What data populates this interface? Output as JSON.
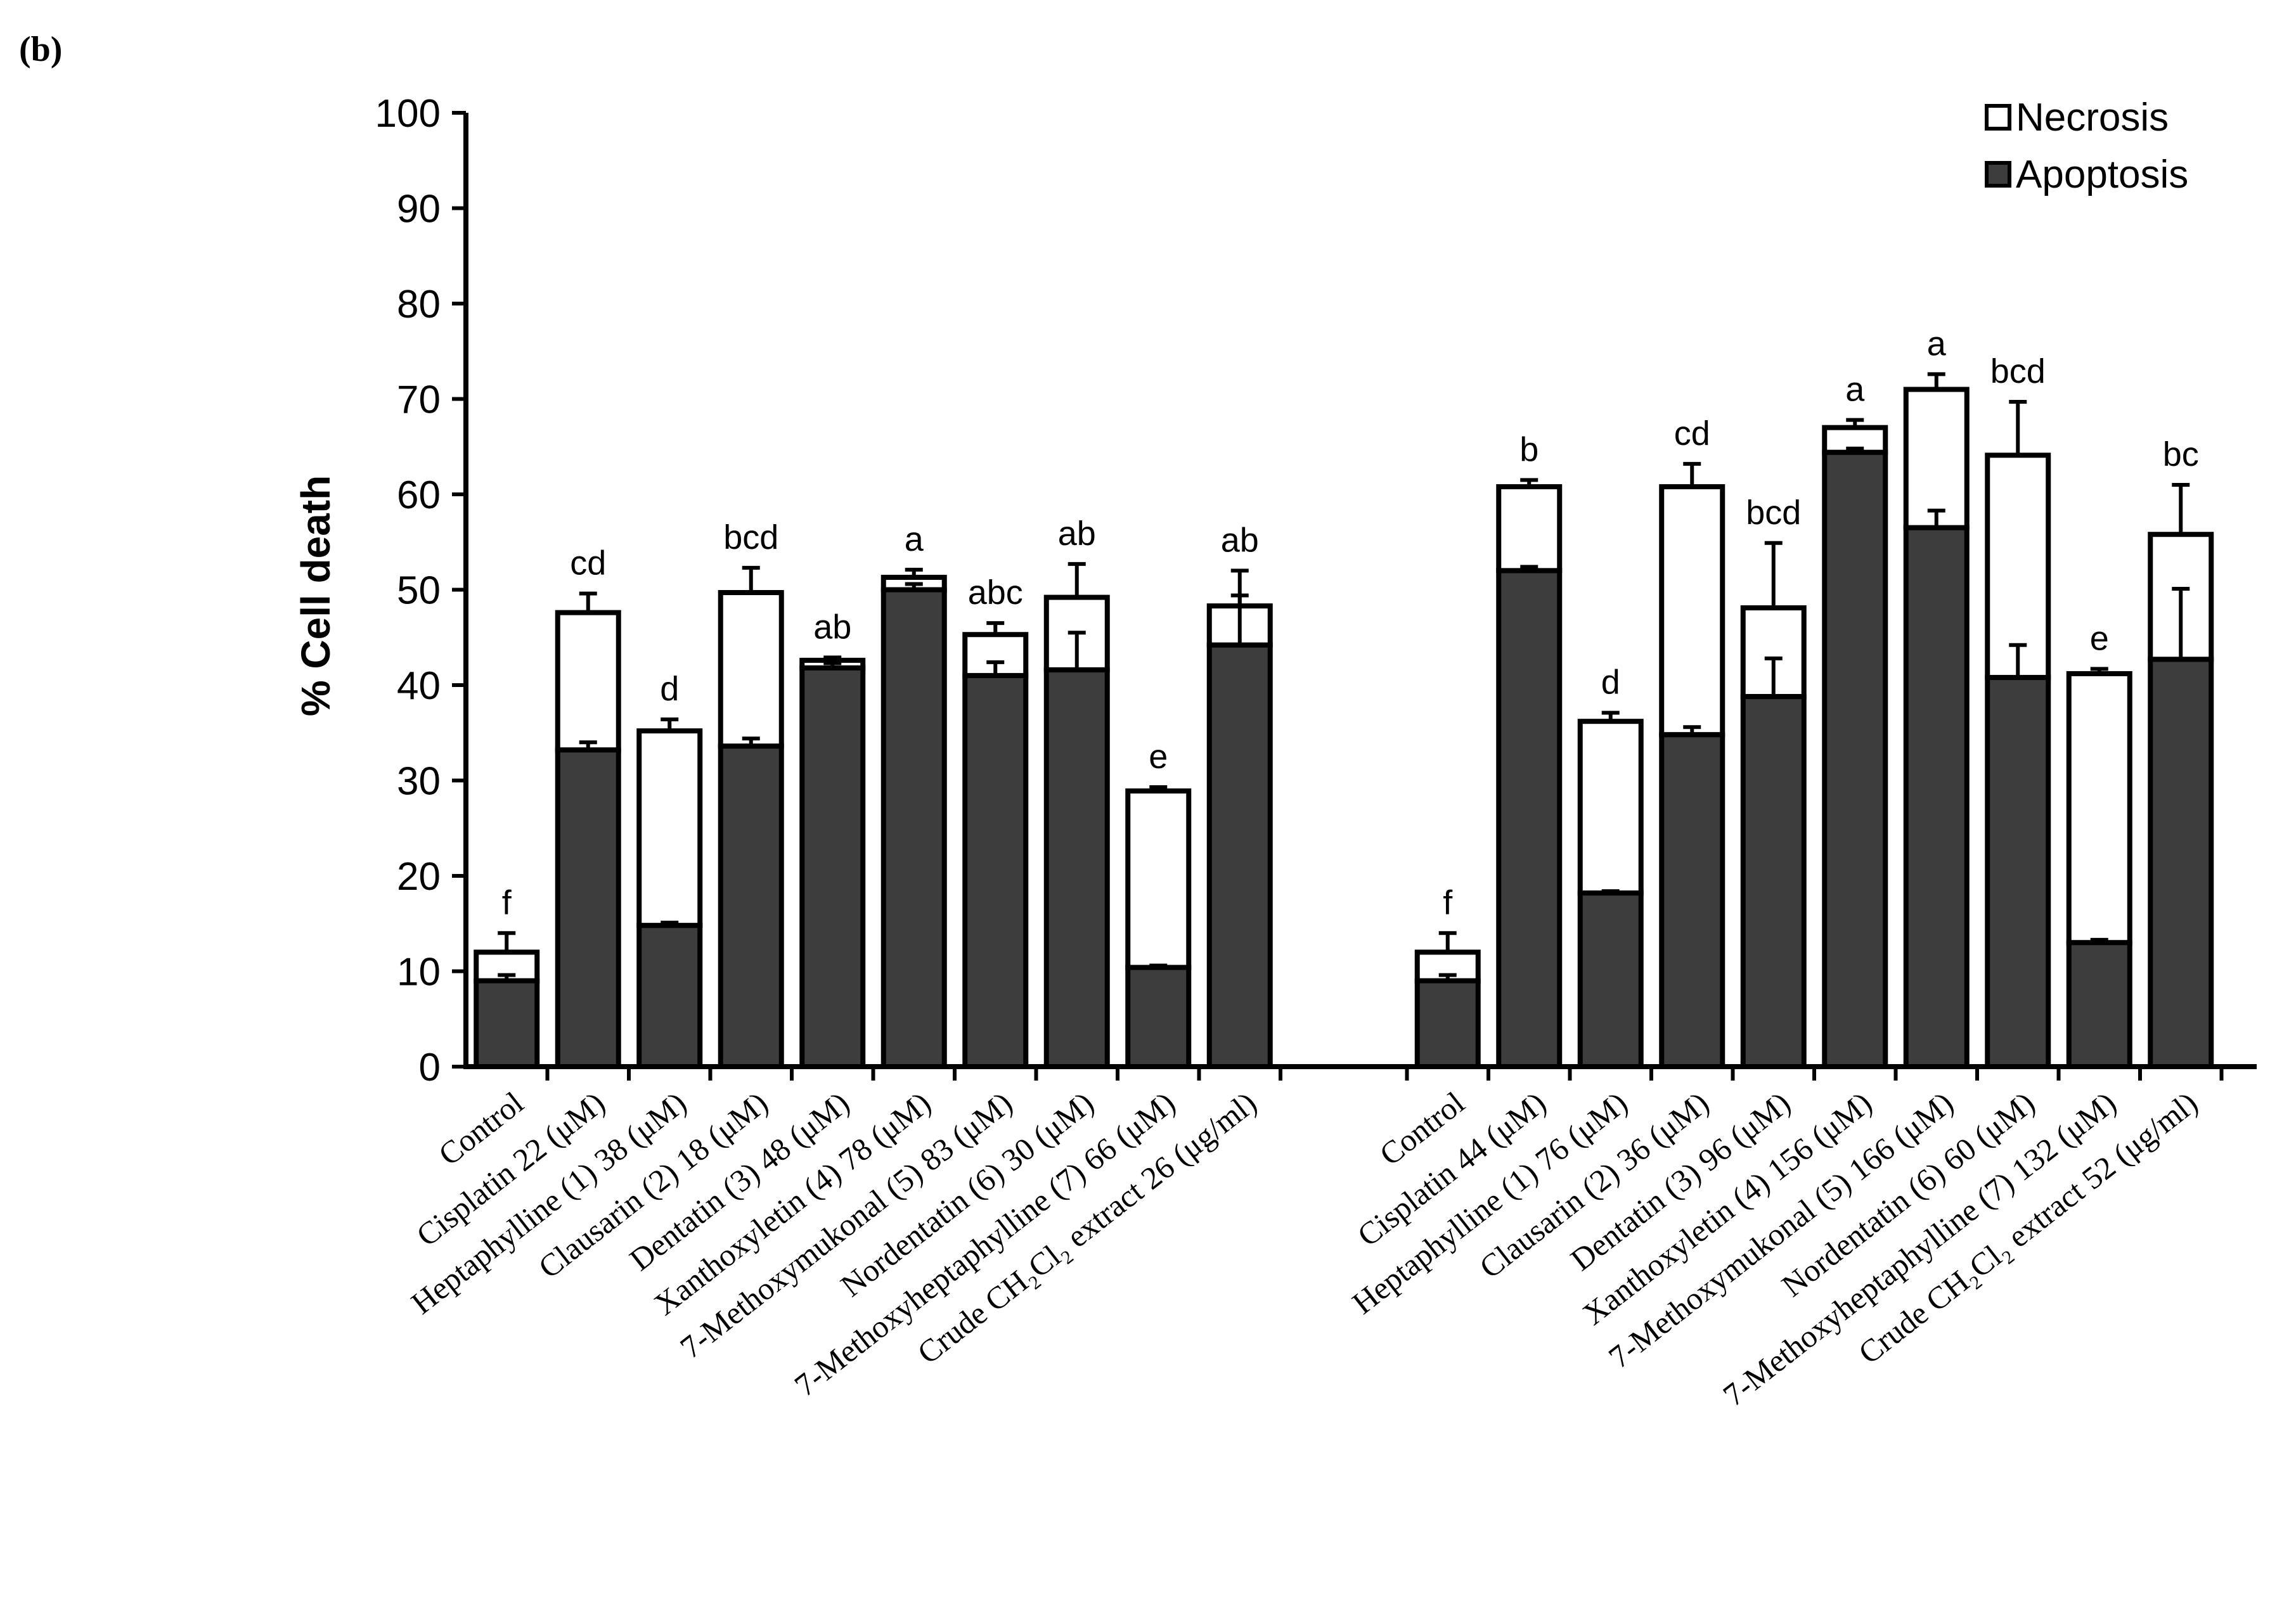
{
  "panel_label": "(b)",
  "colors": {
    "apoptosis": "#3d3d3d",
    "necrosis": "#ffffff",
    "stroke": "#000000"
  },
  "chart_data": {
    "type": "bar",
    "stacked": true,
    "ylabel": "% Cell death",
    "ylim": [
      0,
      100
    ],
    "yticks": [
      "0",
      "10",
      "20",
      "30",
      "40",
      "50",
      "60",
      "70",
      "80",
      "90",
      "100"
    ],
    "legend": {
      "position": "top-right",
      "entries": [
        "Necrosis",
        "Apoptosis"
      ]
    },
    "groups": [
      {
        "bars": [
          {
            "label": "Control",
            "apoptosis": 9,
            "apoptosis_err": 0.6,
            "total": 12,
            "total_err": 2,
            "letter": "f"
          },
          {
            "label": "Cisplatin 22 (μM)",
            "apoptosis": 33.2,
            "apoptosis_err": 0.8,
            "total": 47.6,
            "total_err": 2.0,
            "letter": "cd"
          },
          {
            "label": "Heptaphylline (1) 38 (μM)",
            "apoptosis": 14.8,
            "apoptosis_err": 0.3,
            "total": 35.2,
            "total_err": 1.2,
            "letter": "d"
          },
          {
            "label": "Clausarin (2) 18 (μM)",
            "apoptosis": 33.6,
            "apoptosis_err": 0.8,
            "total": 49.7,
            "total_err": 2.6,
            "letter": "bcd"
          },
          {
            "label": "Dentatin (3) 48 (μM)",
            "apoptosis": 41.8,
            "apoptosis_err": 0.5,
            "total": 42.6,
            "total_err": 0.3,
            "letter": "ab"
          },
          {
            "label": "Xanthoxyletin (4) 78 (μM)",
            "apoptosis": 50.0,
            "apoptosis_err": 0.6,
            "total": 51.3,
            "total_err": 0.8,
            "letter": "a"
          },
          {
            "label": "7-Methoxymukonal (5) 83  (μM)",
            "apoptosis": 41.0,
            "apoptosis_err": 1.4,
            "total": 45.3,
            "total_err": 1.2,
            "letter": "abc"
          },
          {
            "label": "Nordentatin (6) 30 (μM)",
            "apoptosis": 41.6,
            "apoptosis_err": 3.9,
            "total": 49.2,
            "total_err": 3.5,
            "letter": "ab"
          },
          {
            "label": "7-Methoxyheptaphylline (7) 66 (μM)",
            "apoptosis": 10.4,
            "apoptosis_err": 0.2,
            "total": 28.9,
            "total_err": 0.4,
            "letter": "e"
          },
          {
            "label": "Crude CH₂Cl₂ extract 26 (μg/ml)",
            "apoptosis": 44.2,
            "apoptosis_err": 5.2,
            "total": 48.3,
            "total_err": 3.7,
            "letter": "ab"
          }
        ]
      },
      {
        "bars": [
          {
            "label": "Control",
            "apoptosis": 9,
            "apoptosis_err": 0.6,
            "total": 12,
            "total_err": 2,
            "letter": "f"
          },
          {
            "label": "Cisplatin 44 (μM)",
            "apoptosis": 52.0,
            "apoptosis_err": 0.4,
            "total": 60.8,
            "total_err": 0.7,
            "letter": "b"
          },
          {
            "label": "Heptaphylline (1) 76 (μM)",
            "apoptosis": 18.2,
            "apoptosis_err": 0.2,
            "total": 36.2,
            "total_err": 0.9,
            "letter": "d"
          },
          {
            "label": "Clausarin (2) 36 (μM)",
            "apoptosis": 34.8,
            "apoptosis_err": 0.8,
            "total": 60.8,
            "total_err": 2.4,
            "letter": "cd"
          },
          {
            "label": "Dentatin (3) 96 (μM)",
            "apoptosis": 38.8,
            "apoptosis_err": 4.0,
            "total": 48.1,
            "total_err": 6.8,
            "letter": "bcd"
          },
          {
            "label": "Xanthoxyletin (4) 156 (μM)",
            "apoptosis": 64.4,
            "apoptosis_err": 0.4,
            "total": 67.0,
            "total_err": 0.8,
            "letter": "a"
          },
          {
            "label": "7-Methoxymukonal (5) 166 (μM)",
            "apoptosis": 56.5,
            "apoptosis_err": 1.8,
            "total": 71.0,
            "total_err": 1.6,
            "letter": "a"
          },
          {
            "label": "Nordentatin (6) 60 (μM)",
            "apoptosis": 40.8,
            "apoptosis_err": 3.4,
            "total": 64.1,
            "total_err": 5.6,
            "letter": "bcd"
          },
          {
            "label": "7-Methoxyheptaphylline (7) 132 (μM)",
            "apoptosis": 13.0,
            "apoptosis_err": 0.3,
            "total": 41.2,
            "total_err": 0.5,
            "letter": "e"
          },
          {
            "label": "Crude CH₂Cl₂ extract 52 (μg/ml)",
            "apoptosis": 42.7,
            "apoptosis_err": 7.4,
            "total": 55.8,
            "total_err": 5.2,
            "letter": "bc"
          }
        ]
      }
    ]
  }
}
